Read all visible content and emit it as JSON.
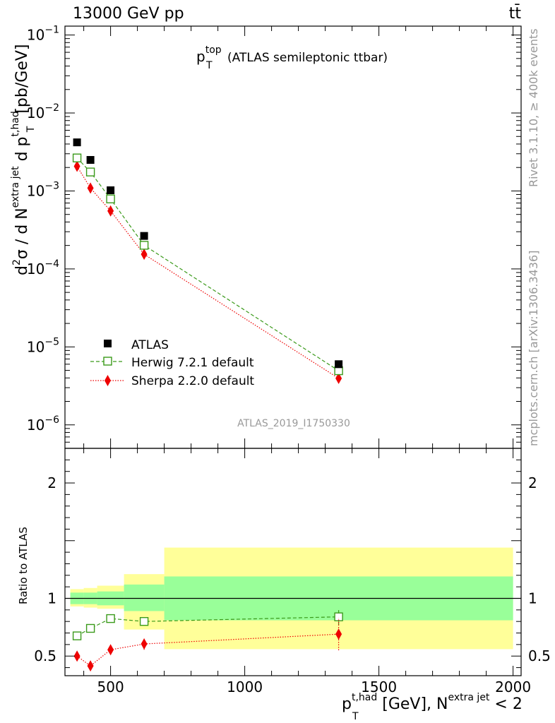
{
  "header": {
    "energy_label": "13000 GeV pp",
    "process_symbol": "tt̄"
  },
  "side_texts": {
    "rivet": "Rivet 3.1.10, ≥ 400k events",
    "mcplots": "mcplots.cern.ch [arXiv:1306.3436]"
  },
  "plot_title": {
    "main": "p",
    "sup": "top",
    "sub": "T",
    "rest": "(ATLAS semileptonic ttbar)"
  },
  "analysis_label": "ATLAS_2019_I1750330",
  "colors": {
    "data": "#000000",
    "herwig": "#3a9a1a",
    "sherpa": "#ee0000",
    "band_inner": "#99ff99",
    "band_outer": "#ffff99"
  },
  "chart_data": [
    {
      "type": "scatter",
      "scale": "log",
      "ylabel": {
        "d2": "d",
        "sup2": "2",
        "sigma": "σ /  d N",
        "sup_extra": "extra jet",
        "d_p": " d p",
        "sup_thad": "t,had",
        "sub_T": "T",
        "unit": "[pb/GeV]"
      },
      "ylim": [
        5e-07,
        0.13
      ],
      "yticks": [
        {
          "value": 1e-06,
          "base": "10",
          "exp": "−6"
        },
        {
          "value": 1e-05,
          "base": "10",
          "exp": "−5"
        },
        {
          "value": 0.0001,
          "base": "10",
          "exp": "−4"
        },
        {
          "value": 0.001,
          "base": "10",
          "exp": "−3"
        },
        {
          "value": 0.01,
          "base": "10",
          "exp": "−2"
        },
        {
          "value": 0.1,
          "base": "10",
          "exp": "−1"
        }
      ],
      "legend_position": "bottom-left",
      "series": [
        {
          "name": "ATLAS",
          "key": "data",
          "x": [
            375,
            425,
            500,
            625,
            1350
          ],
          "y": [
            0.0042,
            0.0025,
            0.00102,
            0.000265,
            6e-06
          ]
        },
        {
          "name": "Herwig 7.2.1 default",
          "key": "herwig",
          "x": [
            375,
            425,
            500,
            625,
            1350
          ],
          "y": [
            0.00265,
            0.00175,
            0.00079,
            0.000201,
            4.95e-06
          ]
        },
        {
          "name": "Sherpa 2.2.0 default",
          "key": "sherpa",
          "x": [
            375,
            425,
            500,
            625,
            1350
          ],
          "y": [
            0.00207,
            0.00109,
            0.000555,
            0.000154,
            3.95e-06
          ]
        }
      ]
    },
    {
      "type": "scatter",
      "scale": "linear",
      "ylabel": "Ratio to ATLAS",
      "ylim": [
        0.33,
        2.3
      ],
      "yticks": [
        0.5,
        1,
        2
      ],
      "xlabel": {
        "p": "p",
        "sup_thad": "t,had",
        "sub_T": "T",
        "mid": " [GeV], N",
        "sup_extra": "extra jet",
        "end": " < 2"
      },
      "xlim": [
        330,
        2030
      ],
      "xticks": [
        500,
        1000,
        1500,
        2000
      ],
      "bins": [
        {
          "lo": 350,
          "hi": 400,
          "inner": [
            0.95,
            1.05
          ],
          "outer": [
            0.93,
            1.08
          ]
        },
        {
          "lo": 400,
          "hi": 450,
          "inner": [
            0.95,
            1.05
          ],
          "outer": [
            0.92,
            1.09
          ]
        },
        {
          "lo": 450,
          "hi": 550,
          "inner": [
            0.94,
            1.06
          ],
          "outer": [
            0.91,
            1.11
          ]
        },
        {
          "lo": 550,
          "hi": 700,
          "inner": [
            0.89,
            1.12
          ],
          "outer": [
            0.73,
            1.21
          ]
        },
        {
          "lo": 700,
          "hi": 2000,
          "inner": [
            0.81,
            1.19
          ],
          "outer": [
            0.56,
            1.44
          ]
        }
      ],
      "series": [
        {
          "name": "Herwig 7.2.1 default",
          "key": "herwig",
          "x": [
            375,
            425,
            500,
            625,
            1350
          ],
          "y": [
            0.675,
            0.74,
            0.825,
            0.8,
            0.84
          ],
          "err": [
            0.0,
            0.0,
            0.0,
            0.03,
            0.07
          ]
        },
        {
          "name": "Sherpa 2.2.0 default",
          "key": "sherpa",
          "x": [
            375,
            425,
            500,
            625,
            1350
          ],
          "y": [
            0.5,
            0.415,
            0.555,
            0.605,
            0.69
          ],
          "err": [
            0.025,
            0.025,
            0.035,
            0.05,
            0.14
          ]
        }
      ]
    }
  ]
}
